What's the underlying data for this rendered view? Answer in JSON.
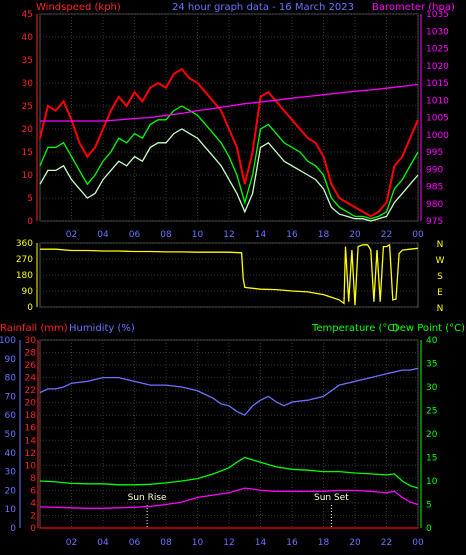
{
  "header": {
    "windspeed_label": "Windspeed (kph)",
    "graph_title": "24 hour graph data - 16 March 2023",
    "barometer_label": "Barometer (hpa)"
  },
  "bottom_header": {
    "rainfall_label": "Rainfall (mm)",
    "humidity_label": "Humidity (%)",
    "temperature_label": "Temperature (°C)",
    "dewpoint_label": "Dew Point (°C)"
  },
  "annotations": {
    "sun_rise": "Sun Rise",
    "sun_set": "Sun Set"
  },
  "colors": {
    "wind_gust": "#ff0000",
    "wind_avg": "#00ff00",
    "wind_speed": "#c8ffc8",
    "barometer": "#ff00ff",
    "direction": "#ffff00",
    "humidity": "#6a73ff",
    "temperature": "#00ff00",
    "dewpoint": "#ff00ff",
    "rainfall": "#ff0000",
    "left_axis_wind": "#ff2222",
    "baro_axis": "#ff00ff",
    "humidity_axis": "#6a73ff",
    "rain_axis": "#ff2222",
    "temp_axis": "#00ff00",
    "grid": "#333333"
  },
  "chart_data": [
    {
      "type": "line",
      "name_hint": "wind-barometer",
      "x_ticks": [
        "02",
        "04",
        "06",
        "08",
        "10",
        "12",
        "14",
        "16",
        "18",
        "20",
        "22",
        "00"
      ],
      "xlim": [
        0,
        24
      ],
      "ylim_left": [
        0,
        45
      ],
      "yticks_left": [
        0,
        5,
        10,
        15,
        20,
        25,
        30,
        35,
        40,
        45
      ],
      "ylim_right": [
        975,
        1035
      ],
      "yticks_right": [
        975,
        980,
        985,
        990,
        995,
        1000,
        1005,
        1010,
        1015,
        1020,
        1025,
        1030,
        1035
      ],
      "series": [
        {
          "key": "gust",
          "axis": "left",
          "x": [
            0,
            0.5,
            1,
            1.5,
            2,
            2.5,
            3,
            3.5,
            4,
            4.5,
            5,
            5.5,
            6,
            6.5,
            7,
            7.5,
            8,
            8.5,
            9,
            9.5,
            10,
            10.5,
            11,
            11.5,
            12,
            12.5,
            13,
            13.5,
            14,
            14.5,
            15,
            15.5,
            16,
            16.5,
            17,
            17.5,
            18,
            18.5,
            19,
            19.5,
            20,
            20.5,
            21,
            21.5,
            22,
            22.5,
            23,
            23.5,
            24
          ],
          "y": [
            18,
            25,
            24,
            26,
            22,
            17,
            14,
            16,
            20,
            24,
            27,
            25,
            28,
            26,
            29,
            30,
            29,
            32,
            33,
            31,
            30,
            28,
            26,
            24,
            20,
            16,
            8,
            15,
            27,
            28,
            26,
            24,
            22,
            20,
            18,
            17,
            14,
            8,
            5,
            4,
            3,
            2,
            1,
            2,
            4,
            12,
            14,
            18,
            22
          ]
        },
        {
          "key": "avg",
          "axis": "left",
          "x": [
            0,
            0.5,
            1,
            1.5,
            2,
            2.5,
            3,
            3.5,
            4,
            4.5,
            5,
            5.5,
            6,
            6.5,
            7,
            7.5,
            8,
            8.5,
            9,
            9.5,
            10,
            10.5,
            11,
            11.5,
            12,
            12.5,
            13,
            13.5,
            14,
            14.5,
            15,
            15.5,
            16,
            16.5,
            17,
            17.5,
            18,
            18.5,
            19,
            19.5,
            20,
            20.5,
            21,
            21.5,
            22,
            22.5,
            23,
            23.5,
            24
          ],
          "y": [
            12,
            16,
            16,
            17,
            14,
            11,
            8,
            10,
            13,
            15,
            18,
            17,
            19,
            18,
            21,
            22,
            22,
            24,
            25,
            24,
            23,
            21,
            19,
            17,
            14,
            10,
            4,
            10,
            20,
            21,
            19,
            17,
            16,
            15,
            13,
            12,
            10,
            5,
            3,
            2,
            1,
            1,
            0.5,
            1,
            2,
            7,
            9,
            12,
            15
          ]
        },
        {
          "key": "speed",
          "axis": "left",
          "x": [
            0,
            0.5,
            1,
            1.5,
            2,
            2.5,
            3,
            3.5,
            4,
            4.5,
            5,
            5.5,
            6,
            6.5,
            7,
            7.5,
            8,
            8.5,
            9,
            9.5,
            10,
            10.5,
            11,
            11.5,
            12,
            12.5,
            13,
            13.5,
            14,
            14.5,
            15,
            15.5,
            16,
            16.5,
            17,
            17.5,
            18,
            18.5,
            19,
            19.5,
            20,
            20.5,
            21,
            21.5,
            22,
            22.5,
            23,
            23.5,
            24
          ],
          "y": [
            8,
            11,
            11,
            12,
            9,
            7,
            5,
            6,
            9,
            11,
            13,
            12,
            14,
            13,
            16,
            17,
            17,
            19,
            20,
            19,
            18,
            16,
            14,
            12,
            9,
            6,
            2,
            6,
            16,
            17,
            15,
            13,
            12,
            11,
            10,
            9,
            7,
            3,
            1.5,
            1,
            0.5,
            0.5,
            0,
            0.5,
            1,
            4,
            6,
            8,
            10
          ]
        },
        {
          "key": "barometer",
          "axis": "right",
          "x": [
            0,
            1,
            2,
            3,
            4,
            5,
            6,
            7,
            8,
            9,
            10,
            11,
            12,
            13,
            14,
            15,
            16,
            17,
            18,
            19,
            20,
            21,
            22,
            23,
            24
          ],
          "y": [
            1004,
            1004,
            1004,
            1004,
            1004,
            1004.3,
            1004.7,
            1005,
            1005.6,
            1006.2,
            1007,
            1007.6,
            1008.3,
            1009,
            1009.5,
            1010,
            1010.6,
            1011.1,
            1011.6,
            1012.1,
            1012.6,
            1013,
            1013.5,
            1014,
            1014.6
          ]
        }
      ]
    },
    {
      "type": "line",
      "name_hint": "wind-direction",
      "x_ticks": [
        "02",
        "04",
        "06",
        "08",
        "10",
        "12",
        "14",
        "16",
        "18",
        "20",
        "22",
        "00"
      ],
      "xlim": [
        0,
        24
      ],
      "ylim": [
        0,
        360
      ],
      "yticks": [
        0,
        90,
        180,
        270,
        360
      ],
      "compass": [
        "N",
        "W",
        "S",
        "E",
        "N"
      ],
      "series": [
        {
          "key": "direction",
          "x": [
            0,
            1,
            2,
            3,
            4,
            5,
            6,
            7,
            8,
            9,
            10,
            11,
            12,
            12.8,
            12.9,
            13,
            14,
            15,
            16,
            17,
            18,
            18.5,
            19,
            19.3,
            19.4,
            19.6,
            19.8,
            20,
            20.2,
            20.5,
            20.8,
            21,
            21.2,
            21.4,
            21.6,
            21.8,
            22,
            22.2,
            22.4,
            22.6,
            22.8,
            23,
            23.5,
            24
          ],
          "y": [
            325,
            325,
            318,
            318,
            315,
            315,
            312,
            312,
            310,
            310,
            308,
            308,
            308,
            305,
            160,
            110,
            100,
            98,
            90,
            85,
            70,
            55,
            40,
            20,
            340,
            30,
            320,
            10,
            340,
            350,
            350,
            320,
            30,
            320,
            30,
            340,
            340,
            350,
            40,
            45,
            300,
            320,
            325,
            330
          ]
        }
      ]
    },
    {
      "type": "line",
      "name_hint": "rain-humidity-temperature-dewpoint",
      "x_ticks": [
        "02",
        "04",
        "06",
        "08",
        "10",
        "12",
        "14",
        "16",
        "18",
        "20",
        "22",
        "00"
      ],
      "xlim": [
        0,
        24
      ],
      "ylim_humidity": [
        0,
        100
      ],
      "yticks_humidity": [
        0,
        10,
        20,
        30,
        40,
        50,
        60,
        70,
        80,
        90,
        100
      ],
      "ylim_rain": [
        0,
        30
      ],
      "yticks_rain": [
        0,
        2,
        4,
        6,
        8,
        10,
        12,
        14,
        16,
        18,
        20,
        22,
        24,
        26,
        28,
        30
      ],
      "ylim_temp": [
        0,
        40
      ],
      "yticks_temp": [
        0,
        5,
        10,
        15,
        20,
        25,
        30,
        35,
        40
      ],
      "series": [
        {
          "key": "humidity",
          "axis": "humidity",
          "x": [
            0,
            0.5,
            1,
            1.5,
            2,
            3,
            4,
            5,
            6,
            7,
            8,
            9,
            10,
            10.5,
            11,
            11.5,
            12,
            12.5,
            13,
            13.5,
            14,
            14.5,
            15,
            15.5,
            16,
            17,
            18,
            19,
            19.5,
            20,
            21,
            22,
            22.5,
            23,
            23.5,
            24
          ],
          "y": [
            72,
            74,
            74,
            75,
            77,
            78,
            80,
            80,
            78,
            76,
            76,
            75,
            73,
            71,
            69,
            66,
            65,
            62,
            60,
            65,
            68,
            70,
            67,
            65,
            67,
            68,
            70,
            76,
            77,
            78,
            80,
            82,
            83,
            84,
            84,
            85
          ]
        },
        {
          "key": "temperature",
          "axis": "temp",
          "x": [
            0,
            1,
            2,
            3,
            4,
            5,
            6,
            7,
            8,
            9,
            10,
            11,
            12,
            12.5,
            13,
            13.5,
            14,
            15,
            16,
            17,
            18,
            19,
            20,
            21,
            22,
            22.5,
            23,
            23.5,
            24
          ],
          "y": [
            10,
            9.8,
            9.5,
            9.4,
            9.4,
            9.2,
            9.2,
            9.3,
            9.6,
            10,
            10.5,
            11.5,
            12.8,
            14,
            15,
            14.5,
            14,
            13,
            12.5,
            12.3,
            12,
            12,
            11.7,
            11.5,
            11.3,
            11.5,
            10,
            9,
            8.5
          ]
        },
        {
          "key": "dewpoint",
          "axis": "temp",
          "x": [
            0,
            1,
            2,
            3,
            4,
            5,
            6,
            7,
            8,
            9,
            10,
            11,
            12,
            12.5,
            13,
            13.5,
            14,
            15,
            16,
            17,
            18,
            19,
            20,
            21,
            22,
            22.5,
            23,
            23.5,
            24
          ],
          "y": [
            4.5,
            4.4,
            4.3,
            4.2,
            4.2,
            4.3,
            4.4,
            4.6,
            5,
            5.5,
            6.5,
            7,
            7.5,
            8,
            8.5,
            8.3,
            8,
            7.8,
            7.8,
            7.8,
            7.8,
            8,
            8,
            7.8,
            7.5,
            7.8,
            6.5,
            5.5,
            5
          ]
        },
        {
          "key": "rainfall",
          "axis": "rain",
          "x": [
            0,
            24
          ],
          "y": [
            0,
            0
          ]
        }
      ],
      "sun_rise_hour": 6.8,
      "sun_set_hour": 18.5
    }
  ]
}
